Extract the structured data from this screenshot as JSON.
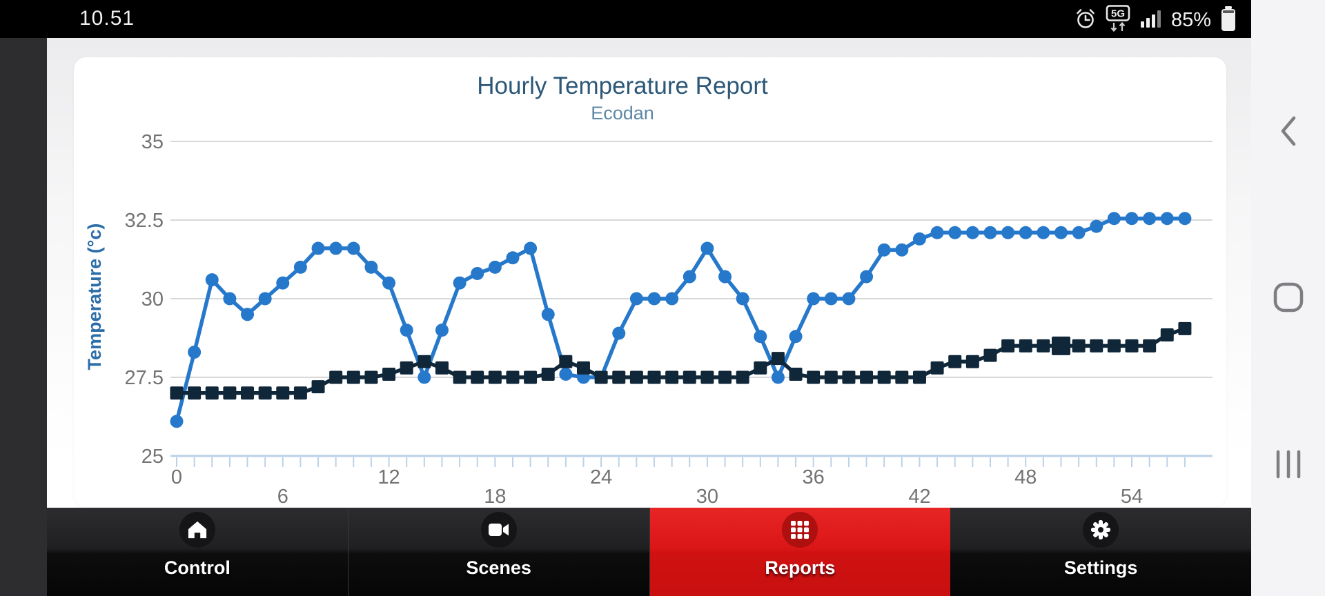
{
  "status_bar": {
    "time": "10.51",
    "network_label": "5G",
    "battery_percent": "85%"
  },
  "chart": {
    "title": "Hourly Temperature Report",
    "subtitle": "Ecodan",
    "y_axis_title": "Temperature (°c)"
  },
  "chart_data": {
    "type": "line",
    "title": "Hourly Temperature Report",
    "subtitle": "Ecodan",
    "xlabel": "",
    "ylabel": "Temperature (°c)",
    "ylim": [
      25,
      35
    ],
    "yticks": [
      25,
      27.5,
      30,
      32.5,
      35
    ],
    "xticks": [
      0,
      6,
      12,
      18,
      24,
      30,
      36,
      42,
      48,
      54
    ],
    "x_max": 57,
    "grid": true,
    "legend": "none",
    "x": [
      0,
      1,
      2,
      3,
      4,
      5,
      6,
      7,
      8,
      9,
      10,
      11,
      12,
      13,
      14,
      15,
      16,
      17,
      18,
      19,
      20,
      21,
      22,
      23,
      24,
      25,
      26,
      27,
      28,
      29,
      30,
      31,
      32,
      33,
      34,
      35,
      36,
      37,
      38,
      39,
      40,
      41,
      42,
      43,
      44,
      45,
      46,
      47,
      48,
      49,
      50,
      51,
      52,
      53,
      54,
      55,
      56,
      57
    ],
    "series": [
      {
        "name": "series-1-blue-circles",
        "color": "#2678cb",
        "marker": "circle",
        "values": [
          26.1,
          28.3,
          30.6,
          30.0,
          29.5,
          30.0,
          30.5,
          31.0,
          31.6,
          31.6,
          31.6,
          31.0,
          30.5,
          29.0,
          27.5,
          29.0,
          30.5,
          30.8,
          31.0,
          31.3,
          31.6,
          29.5,
          27.6,
          27.5,
          27.5,
          28.9,
          30.0,
          30.0,
          30.0,
          30.7,
          31.6,
          30.7,
          30.0,
          28.8,
          27.5,
          28.8,
          30.0,
          30.0,
          30.0,
          30.7,
          31.55,
          31.55,
          31.9,
          32.1,
          32.1,
          32.1,
          32.1,
          32.1,
          32.1,
          32.1,
          32.1,
          32.1,
          32.3,
          32.55,
          32.55,
          32.55,
          32.55,
          32.55
        ]
      },
      {
        "name": "series-2-navy-squares",
        "color": "#10273a",
        "marker": "square",
        "large_marker_at": 50,
        "values": [
          27.0,
          27.0,
          27.0,
          27.0,
          27.0,
          27.0,
          27.0,
          27.0,
          27.2,
          27.5,
          27.5,
          27.5,
          27.6,
          27.8,
          28.0,
          27.8,
          27.5,
          27.5,
          27.5,
          27.5,
          27.5,
          27.6,
          28.0,
          27.8,
          27.5,
          27.5,
          27.5,
          27.5,
          27.5,
          27.5,
          27.5,
          27.5,
          27.5,
          27.8,
          28.1,
          27.6,
          27.5,
          27.5,
          27.5,
          27.5,
          27.5,
          27.5,
          27.5,
          27.8,
          28.0,
          28.0,
          28.2,
          28.5,
          28.5,
          28.5,
          28.5,
          28.5,
          28.5,
          28.5,
          28.5,
          28.5,
          28.85,
          29.05
        ]
      }
    ]
  },
  "bottom_nav": {
    "tabs": [
      {
        "label": "Control",
        "icon": "home-icon",
        "active": false
      },
      {
        "label": "Scenes",
        "icon": "camera-icon",
        "active": false
      },
      {
        "label": "Reports",
        "icon": "grid-icon",
        "active": true
      },
      {
        "label": "Settings",
        "icon": "gear-icon",
        "active": false
      }
    ]
  },
  "colors": {
    "accent_red": "#dc1414",
    "series_blue": "#2678cb",
    "series_navy": "#10273a",
    "title_blue": "#2c5777",
    "subtitle_blue": "#5d87a6",
    "axis_label_gray": "#737373"
  }
}
